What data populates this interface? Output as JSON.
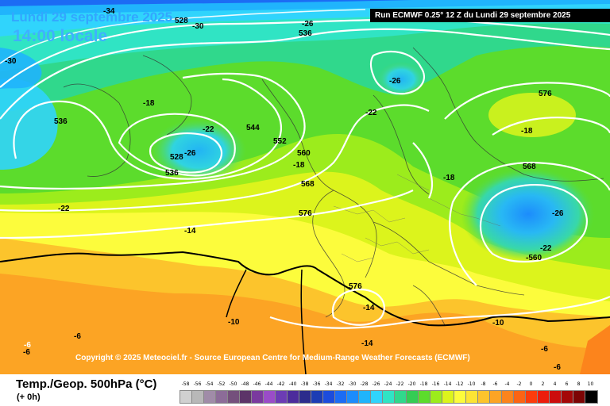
{
  "header": {
    "date": "Lundi 29 septembre 2025",
    "local_time": "14:00 locale",
    "run": "Run ECMWF 0.25° 12 Z du Lundi 29 septembre 2025"
  },
  "copyright": "Copyright © 2025 Meteociel.fr - Source European Centre for Medium-Range Weather Forecasts (ECMWF)",
  "legend": {
    "title": "Temp./Geop. 500hPa (°C)",
    "subtitle": "(+ 0h)",
    "scale": [
      {
        "label": "-58",
        "color": "#d0d0d0"
      },
      {
        "label": "-56",
        "color": "#b8b8b8"
      },
      {
        "label": "-54",
        "color": "#a08ca8"
      },
      {
        "label": "-52",
        "color": "#8c6c98"
      },
      {
        "label": "-50",
        "color": "#74507c"
      },
      {
        "label": "-48",
        "color": "#5c3468"
      },
      {
        "label": "-46",
        "color": "#7a3a9e"
      },
      {
        "label": "-44",
        "color": "#9a4cc8"
      },
      {
        "label": "-42",
        "color": "#6c3cb4"
      },
      {
        "label": "-40",
        "color": "#4c2c9c"
      },
      {
        "label": "-38",
        "color": "#2c2c8c"
      },
      {
        "label": "-36",
        "color": "#1c3cb4"
      },
      {
        "label": "-34",
        "color": "#1c4cdc"
      },
      {
        "label": "-32",
        "color": "#1c6cf4"
      },
      {
        "label": "-30",
        "color": "#1c8cfc"
      },
      {
        "label": "-28",
        "color": "#20b4fc"
      },
      {
        "label": "-26",
        "color": "#30d4fc"
      },
      {
        "label": "-24",
        "color": "#30e4c4"
      },
      {
        "label": "-22",
        "color": "#30d88c"
      },
      {
        "label": "-20",
        "color": "#34cc54"
      },
      {
        "label": "-18",
        "color": "#5cdc2c"
      },
      {
        "label": "-16",
        "color": "#9cec1c"
      },
      {
        "label": "-14",
        "color": "#dcf41c"
      },
      {
        "label": "-12",
        "color": "#fcfc3c"
      },
      {
        "label": "-10",
        "color": "#fce434"
      },
      {
        "label": "-8",
        "color": "#fcc42c"
      },
      {
        "label": "-6",
        "color": "#fca424"
      },
      {
        "label": "-4",
        "color": "#fc841c"
      },
      {
        "label": "-2",
        "color": "#fc6414"
      },
      {
        "label": "0",
        "color": "#fc3c0c"
      },
      {
        "label": "2",
        "color": "#ec1c0c"
      },
      {
        "label": "4",
        "color": "#cc0c0c"
      },
      {
        "label": "6",
        "color": "#a40808"
      },
      {
        "label": "8",
        "color": "#7c0404"
      },
      {
        "label": "10",
        "color": "#000000"
      }
    ]
  },
  "map_labels": {
    "l1": "-34",
    "l2": "528",
    "l3": "-30",
    "l4": "-26",
    "l5": "536",
    "l6": "-30",
    "l7": "-26",
    "l8": "-18",
    "l9": "536",
    "l10": "-22",
    "l11": "544",
    "l12": "-22",
    "l13": "576",
    "l14": "552",
    "l15": "-26",
    "l16": "528",
    "l17": "560",
    "l18": "-18",
    "l19": "536",
    "l20": "-18",
    "l21": "-18",
    "l22": "568",
    "l23": "568",
    "l24": "-22",
    "l25": "576",
    "l26": "-26",
    "l27": "-14",
    "l28": "-22",
    "l29": "-560",
    "l30": "576",
    "l31": "-14",
    "l32": "-10",
    "l33": "-10",
    "l34": "-6",
    "l35": "-6",
    "l36": "-6",
    "l37": "-14",
    "l38": "-6",
    "l39": "-6"
  }
}
